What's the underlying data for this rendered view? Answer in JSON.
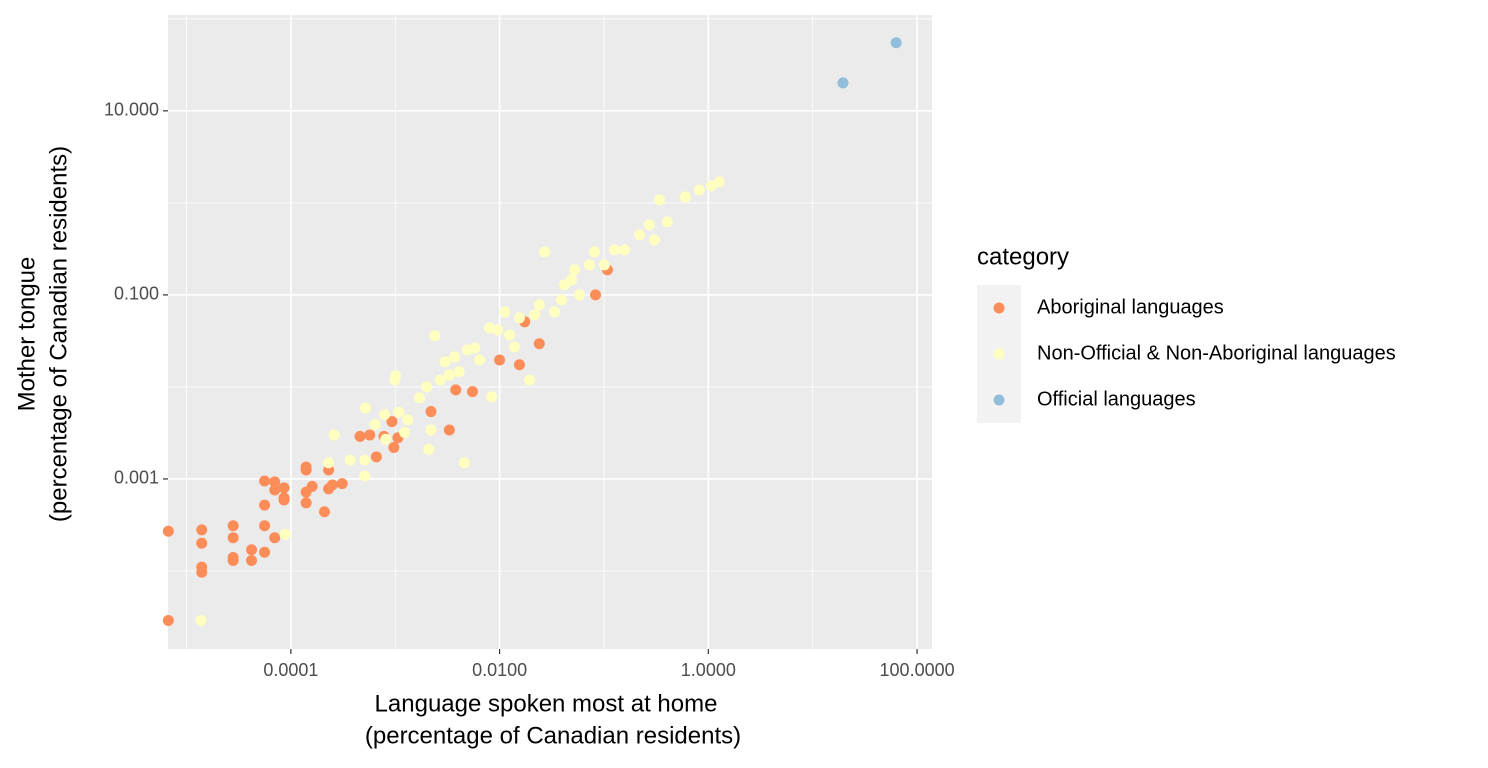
{
  "chart_data": {
    "type": "scatter",
    "xlabel": [
      "Language spoken most at home",
      "(percentage of Canadian residents)"
    ],
    "ylabel": [
      "Mother tongue",
      "(percentage of Canadian residents)"
    ],
    "log_x": true,
    "log_y": true,
    "grid": true,
    "xlim": [
      6.65e-06,
      139
    ],
    "ylim": [
      1.42e-05,
      110
    ],
    "xticks": [
      {
        "value": 0.0001,
        "label": "0.0001"
      },
      {
        "value": 0.01,
        "label": "0.0100"
      },
      {
        "value": 1,
        "label": "1.0000"
      },
      {
        "value": 100,
        "label": "100.0000"
      }
    ],
    "yticks": [
      {
        "value": 0.001,
        "label": "0.001"
      },
      {
        "value": 0.1,
        "label": "0.100"
      },
      {
        "value": 10,
        "label": "10.000"
      }
    ],
    "x_minor_grid": [
      1e-05,
      0.001,
      0.1,
      10
    ],
    "y_minor_grid": [
      0.0001,
      0.01,
      1,
      100
    ],
    "legend_title": "category",
    "legend_position": "right",
    "series": [
      {
        "name": "Aboriginal languages",
        "color": "#FC8D59",
        "x": [
          6.7e-06,
          6.7e-06,
          1.4e-05,
          1.4e-05,
          1.4e-05,
          1.4e-05,
          2.8e-05,
          2.8e-05,
          2.8e-05,
          2.8e-05,
          4.2e-05,
          4.2e-05,
          5.6e-05,
          5.6e-05,
          5.6e-05,
          5.6e-05,
          7e-05,
          7e-05,
          7e-05,
          8.6e-05,
          8.6e-05,
          8.6e-05,
          0.00014,
          0.00014,
          0.00014,
          0.00014,
          0.00016,
          0.00021,
          0.00023,
          0.00023,
          0.00025,
          0.00031,
          0.00046,
          0.00057,
          0.00066,
          0.00078,
          0.00093,
          0.00097,
          0.00106,
          0.0022,
          0.0033,
          0.0038,
          0.0055,
          0.01,
          0.0155,
          0.0174,
          0.024,
          0.083,
          0.108
        ],
        "values": [
          0.00027,
          2.9e-05,
          0.00028,
          0.0002,
          0.00011,
          9.7e-05,
          0.00031,
          0.00023,
          0.00014,
          0.00013,
          0.00017,
          0.00013,
          0.00095,
          0.00052,
          0.00031,
          0.00016,
          0.00093,
          0.00076,
          0.00023,
          0.0008,
          0.00062,
          0.00059,
          0.00135,
          0.00125,
          0.00072,
          0.00055,
          0.00083,
          0.00044,
          0.00125,
          0.00078,
          0.00086,
          0.00089,
          0.0029,
          0.003,
          0.00174,
          0.0029,
          0.0042,
          0.0022,
          0.0028,
          0.0054,
          0.0034,
          0.0093,
          0.0089,
          0.0196,
          0.0174,
          0.051,
          0.0295,
          0.1,
          0.187
        ]
      },
      {
        "name": "Non-Official & Non-Aboriginal languages",
        "color": "#FFFFBF",
        "x": [
          1.38e-05,
          8.8e-05,
          0.00023,
          0.00026,
          0.00037,
          0.00051,
          0.00051,
          0.00052,
          0.00064,
          0.00079,
          0.00081,
          0.00099,
          0.00101,
          0.00108,
          0.00123,
          0.00132,
          0.00171,
          0.002,
          0.0021,
          0.0022,
          0.0024,
          0.0027,
          0.003,
          0.0033,
          0.0037,
          0.0041,
          0.0046,
          0.0049,
          0.0058,
          0.0064,
          0.008,
          0.0084,
          0.0096,
          0.0112,
          0.0125,
          0.0139,
          0.0155,
          0.0194,
          0.0216,
          0.0241,
          0.027,
          0.0336,
          0.0392,
          0.0419,
          0.0489,
          0.0522,
          0.0583,
          0.0727,
          0.0811,
          0.101,
          0.126,
          0.157,
          0.219,
          0.272,
          0.304,
          0.34,
          0.405,
          0.603,
          0.82,
          1.07,
          1.27
        ],
        "values": [
          2.9e-05,
          0.00025,
          0.0015,
          0.003,
          0.0016,
          0.0016,
          0.00108,
          0.0059,
          0.0039,
          0.005,
          0.0027,
          0.0119,
          0.0132,
          0.0053,
          0.0032,
          0.0044,
          0.0076,
          0.01,
          0.0021,
          0.0034,
          0.036,
          0.0119,
          0.0187,
          0.0135,
          0.0212,
          0.0146,
          0.0015,
          0.0252,
          0.0265,
          0.0196,
          0.0438,
          0.0078,
          0.0417,
          0.0653,
          0.0367,
          0.0272,
          0.0562,
          0.0119,
          0.0607,
          0.0778,
          0.293,
          0.0653,
          0.0883,
          0.129,
          0.146,
          0.187,
          0.1,
          0.212,
          0.293,
          0.212,
          0.308,
          0.308,
          0.449,
          0.576,
          0.396,
          1.08,
          0.621,
          1.16,
          1.38,
          1.53,
          1.69
        ]
      },
      {
        "name": "Official languages",
        "color": "#91BFDB",
        "x": [
          19.5,
          63
        ],
        "values": [
          20.1,
          55
        ]
      }
    ]
  }
}
